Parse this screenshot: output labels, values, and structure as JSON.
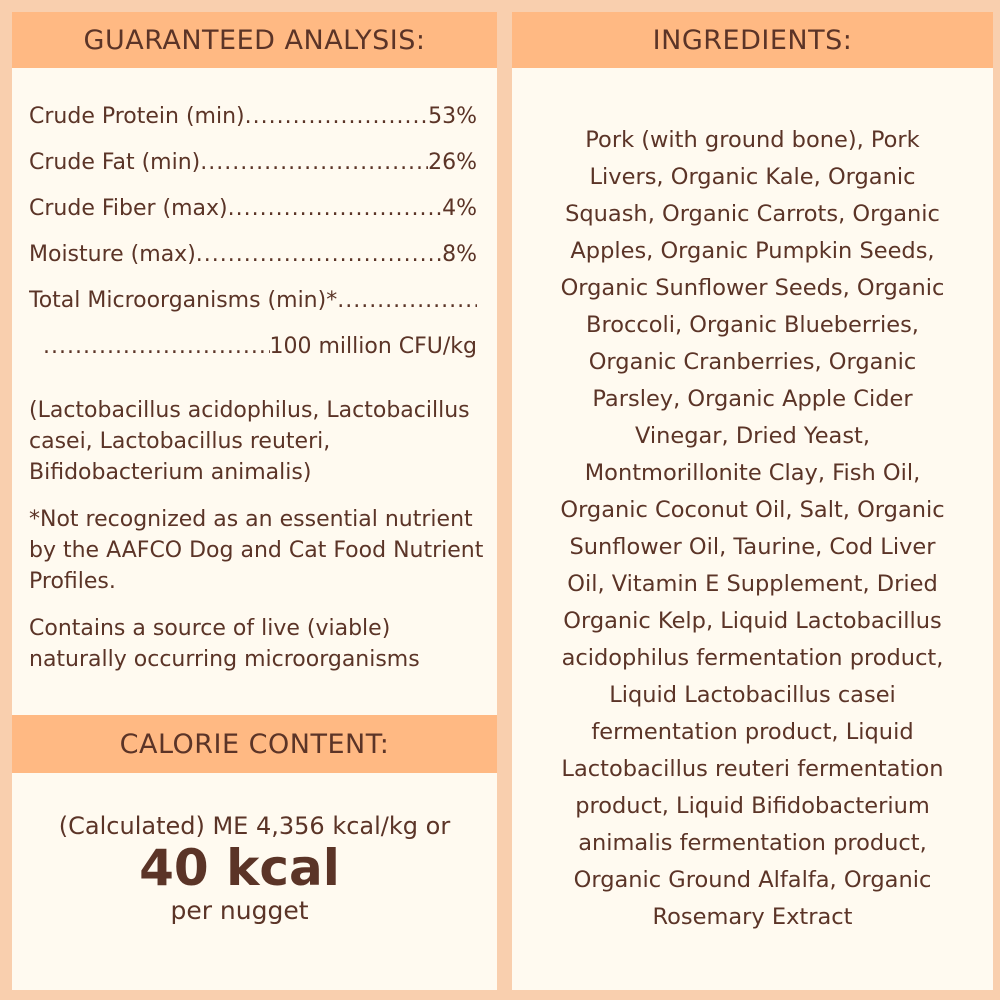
{
  "guaranteed_analysis": {
    "title": "GUARANTEED ANALYSIS:",
    "rows": [
      {
        "label": "Crude Protein (min)",
        "value": "53%"
      },
      {
        "label": "Crude Fat (min)",
        "value": "26%"
      },
      {
        "label": "Crude Fiber (max)",
        "value": "4%"
      },
      {
        "label": "Moisture (max)",
        "value": "8%"
      },
      {
        "label": "Total Microorganisms (min)*",
        "value": "100 million CFU/kg"
      }
    ],
    "strains": "(Lactobacillus acidophilus, Lactobacillus casei, Lactobacillus reuteri, Bifidobacterium animalis)",
    "footnote": "*Not recognized as an essential nutrient by the AAFCO Dog and Cat Food Nutrient Profiles.",
    "live_note": "Contains a source of live (viable) naturally occurring microorganisms"
  },
  "calorie_content": {
    "title": "CALORIE CONTENT:",
    "line1": "(Calculated) ME 4,356 kcal/kg or",
    "big": "40 kcal",
    "line3": "per nugget"
  },
  "ingredients": {
    "title": "INGREDIENTS:",
    "lines": [
      "Pork (with ground bone), Pork",
      "Livers, Organic Kale, Organic",
      "Squash, Organic Carrots, Organic",
      "Apples, Organic Pumpkin Seeds,",
      "Organic Sunflower Seeds, Organic",
      "Broccoli, Organic Blueberries,",
      "Organic Cranberries, Organic",
      "Parsley, Organic Apple Cider",
      "Vinegar, Dried Yeast,",
      "Montmorillonite Clay, Fish Oil,",
      "Organic Coconut Oil, Salt, Organic",
      "Sunflower Oil, Taurine, Cod Liver",
      "Oil, Vitamin E Supplement, Dried",
      "Organic Kelp, Liquid Lactobacillus",
      "acidophilus fermentation product,",
      "Liquid Lactobacillus casei",
      "fermentation product, Liquid",
      "Lactobacillus reuteri fermentation",
      "product, Liquid Bifidobacterium",
      "animalis fermentation product,",
      "Organic Ground Alfalfa, Organic",
      "Rosemary Extract"
    ]
  }
}
